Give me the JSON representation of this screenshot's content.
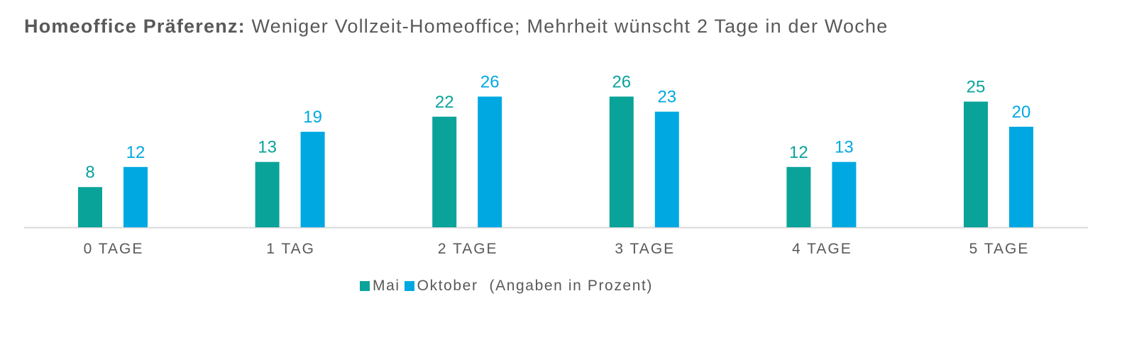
{
  "title": {
    "bold": "Homeoffice Präferenz:",
    "rest": "Weniger Vollzeit-Homeoffice; Mehrheit wünscht 2 Tage in der Woche"
  },
  "legend_note": "(Angaben in Prozent)",
  "chart_data": {
    "type": "bar",
    "title": "Homeoffice Präferenz: Weniger Vollzeit-Homeoffice; Mehrheit wünscht 2 Tage in der Woche",
    "categories": [
      "0 TAGE",
      "1 TAG",
      "2 TAGE",
      "3 TAGE",
      "4 TAGE",
      "5 TAGE"
    ],
    "series": [
      {
        "name": "Mai",
        "color": "#0aa39a",
        "values": [
          8,
          13,
          22,
          26,
          12,
          25
        ]
      },
      {
        "name": "Oktober",
        "color": "#00a8e2",
        "values": [
          12,
          19,
          26,
          23,
          13,
          20
        ]
      }
    ],
    "ylim": [
      0,
      27
    ],
    "grid": false,
    "legend": "bottom"
  }
}
